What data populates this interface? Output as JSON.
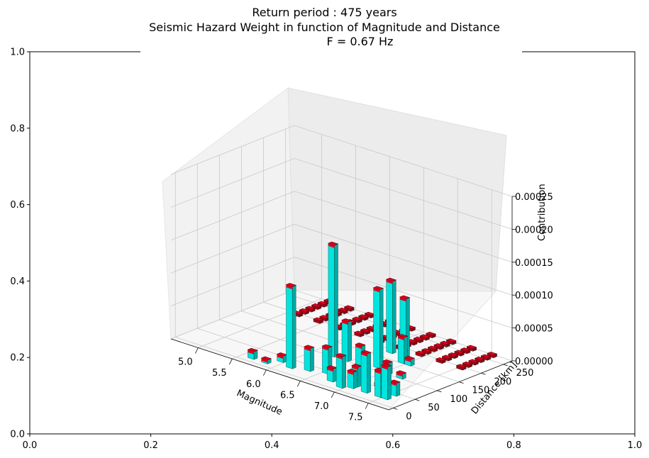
{
  "title_lines": [
    "Return period : 475 years",
    "Seismic Hazard Weight in function of Magnitude and Distance",
    "F = 0.67 Hz"
  ],
  "outer_axes": {
    "x_ticks": [
      "0.0",
      "0.2",
      "0.4",
      "0.6",
      "0.8",
      "1.0"
    ],
    "y_ticks": [
      "0.0",
      "0.2",
      "0.4",
      "0.6",
      "0.8",
      "1.0"
    ],
    "xlim": [
      0,
      1
    ],
    "ylim": [
      0,
      1
    ]
  },
  "chart_data": {
    "type": "bar3d",
    "xlabel": "Magnitude",
    "ylabel": "Distance [km]",
    "zlabel": "Contribution",
    "x_ticks": [
      "5.0",
      "5.5",
      "6.0",
      "6.5",
      "7.0",
      "7.5"
    ],
    "y_ticks": [
      "0",
      "50",
      "100",
      "150",
      "200",
      "250"
    ],
    "z_ticks": [
      "0.00000",
      "0.00005",
      "0.00010",
      "0.00015",
      "0.00020",
      "0.00025"
    ],
    "xlim": [
      4.6,
      7.8
    ],
    "ylim": [
      -10,
      270
    ],
    "zlim": [
      0,
      0.00025
    ],
    "bar_colors": {
      "top": "#e0001a",
      "side": "#00e5de"
    },
    "bars": [
      {
        "m": 5.6,
        "d": 10,
        "v": 1.2e-05
      },
      {
        "m": 5.8,
        "d": 10,
        "v": 6e-06
      },
      {
        "m": 5.9,
        "d": 30,
        "v": 1e-05
      },
      {
        "m": 6.1,
        "d": 20,
        "v": 0.000125
      },
      {
        "m": 6.3,
        "d": 30,
        "v": 3.5e-05
      },
      {
        "m": 6.5,
        "d": 40,
        "v": 4e-05
      },
      {
        "m": 6.7,
        "d": 20,
        "v": 2e-05
      },
      {
        "m": 6.9,
        "d": 10,
        "v": 4.8e-05
      },
      {
        "m": 7.0,
        "d": 20,
        "v": 2.5e-05
      },
      {
        "m": 7.0,
        "d": 30,
        "v": 3e-05
      },
      {
        "m": 7.2,
        "d": 50,
        "v": 5e-06
      },
      {
        "m": 7.2,
        "d": 20,
        "v": 6e-05
      },
      {
        "m": 7.4,
        "d": 20,
        "v": 4e-05
      },
      {
        "m": 7.5,
        "d": 20,
        "v": 5e-05
      },
      {
        "m": 7.5,
        "d": 40,
        "v": 2e-05
      },
      {
        "m": 6.2,
        "d": 100,
        "v": 0.00017
      },
      {
        "m": 6.4,
        "d": 100,
        "v": 6e-05
      },
      {
        "m": 6.6,
        "d": 100,
        "v": 3e-05
      },
      {
        "m": 6.8,
        "d": 110,
        "v": 0.00012
      },
      {
        "m": 7.0,
        "d": 100,
        "v": 1.8e-05
      },
      {
        "m": 7.2,
        "d": 100,
        "v": 8e-06
      },
      {
        "m": 6.6,
        "d": 170,
        "v": 0.00011
      },
      {
        "m": 6.8,
        "d": 170,
        "v": 9e-05
      },
      {
        "m": 6.9,
        "d": 150,
        "v": 4e-05
      },
      {
        "m": 7.0,
        "d": 150,
        "v": 1e-05
      }
    ],
    "grid": true
  }
}
